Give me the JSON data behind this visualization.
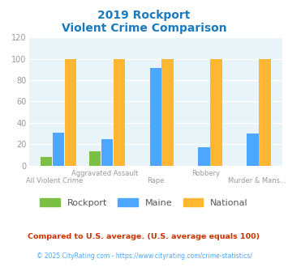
{
  "title_line1": "2019 Rockport",
  "title_line2": "Violent Crime Comparison",
  "title_color": "#1a7abf",
  "categories_top": [
    "",
    "Aggravated Assault",
    "",
    "Robbery",
    ""
  ],
  "categories_bottom": [
    "All Violent Crime",
    "",
    "Rape",
    "",
    "Murder & Mans..."
  ],
  "rockport": [
    8,
    13,
    0,
    0,
    0
  ],
  "maine": [
    31,
    25,
    91,
    17,
    30
  ],
  "national": [
    100,
    100,
    100,
    100,
    100
  ],
  "rockport_color": "#7bc043",
  "maine_color": "#4da6ff",
  "national_color": "#ffb733",
  "ylim": [
    0,
    120
  ],
  "yticks": [
    0,
    20,
    40,
    60,
    80,
    100,
    120
  ],
  "plot_bg_color": "#e8f4f8",
  "grid_color": "#ffffff",
  "tick_color": "#999999",
  "xlabel_color": "#999999",
  "legend_labels": [
    "Rockport",
    "Maine",
    "National"
  ],
  "legend_text_color": "#555555",
  "footnote1": "Compared to U.S. average. (U.S. average equals 100)",
  "footnote2": "© 2025 CityRating.com - https://www.cityrating.com/crime-statistics/",
  "footnote1_color": "#cc3300",
  "footnote2_color": "#4da6ff"
}
